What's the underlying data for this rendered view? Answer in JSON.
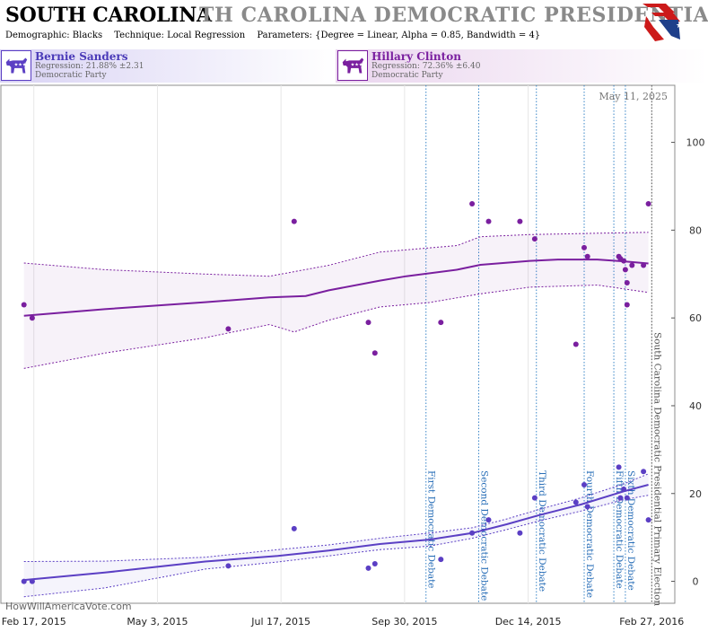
{
  "header": {
    "title": "SOUTH CAROLINA",
    "title_ghost": "TH CAROLINA DEMOCRATIC PRESIDENTIAL PRIMARY",
    "demographic": "Demographic: Blacks",
    "technique": "Technique: Local Regression",
    "parameters": "Parameters: {Degree = Linear, Alpha = 0.85, Bandwidth = 4}"
  },
  "candidates": [
    {
      "name": "Bernie Sanders",
      "regression": "Regression: 21.88% ±2.31",
      "party": "Democratic Party",
      "icon": "democrat-donkey-icon",
      "color": "#5b3fc4"
    },
    {
      "name": "Hillary Clinton",
      "regression": "Regression: 72.36% ±6.40",
      "party": "Democratic Party",
      "icon": "democrat-donkey-icon",
      "color": "#7a1f9f"
    }
  ],
  "chart_data": {
    "type": "scatter",
    "title": "",
    "xlabel": "",
    "ylabel": "",
    "ylim": [
      -5,
      113
    ],
    "yticks": [
      0,
      20,
      40,
      60,
      80,
      100
    ],
    "xlim": [
      "2015-01-28",
      "2016-03-12"
    ],
    "xticks": [
      {
        "date": "2015-02-17",
        "label": "Feb 17, 2015"
      },
      {
        "date": "2015-05-03",
        "label": "May 3, 2015"
      },
      {
        "date": "2015-07-17",
        "label": "Jul 17, 2015"
      },
      {
        "date": "2015-09-30",
        "label": "Sep 30, 2015"
      },
      {
        "date": "2015-12-14",
        "label": "Dec 14, 2015"
      },
      {
        "date": "2016-02-27",
        "label": "Feb 27, 2016"
      }
    ],
    "grid": "vertical",
    "current_date": "May 11, 2025",
    "watermark": "HowWillAmericaVote.com",
    "events": [
      {
        "date": "2015-10-13",
        "label": "First Democratic Debate"
      },
      {
        "date": "2015-11-14",
        "label": "Second Democratic Debate"
      },
      {
        "date": "2015-12-19",
        "label": "Third Democratic Debate"
      },
      {
        "date": "2016-01-17",
        "label": "Fourth Democratic Debate"
      },
      {
        "date": "2016-02-04",
        "label": "Fifth Democratic Debate"
      },
      {
        "date": "2016-02-11",
        "label": "Sixth Democratic Debate"
      },
      {
        "date": "2016-02-27",
        "label": "South Carolina Democratic Presidential Primary Election"
      }
    ],
    "series": [
      {
        "name": "Hillary Clinton",
        "color": "#7a1f9f",
        "points": [
          [
            "2015-02-11",
            63
          ],
          [
            "2015-02-16",
            60
          ],
          [
            "2015-06-15",
            57.5
          ],
          [
            "2015-07-25",
            82
          ],
          [
            "2015-09-08",
            59
          ],
          [
            "2015-09-12",
            52
          ],
          [
            "2015-10-22",
            59
          ],
          [
            "2015-11-10",
            86
          ],
          [
            "2015-11-20",
            82
          ],
          [
            "2015-12-09",
            82
          ],
          [
            "2015-12-18",
            78
          ],
          [
            "2016-01-12",
            54
          ],
          [
            "2016-01-17",
            76
          ],
          [
            "2016-01-19",
            74
          ],
          [
            "2016-02-07",
            74
          ],
          [
            "2016-02-08",
            73.5
          ],
          [
            "2016-02-10",
            73
          ],
          [
            "2016-02-11",
            71
          ],
          [
            "2016-02-12",
            68
          ],
          [
            "2016-02-12",
            63
          ],
          [
            "2016-02-15",
            72
          ],
          [
            "2016-02-22",
            72
          ],
          [
            "2016-02-25",
            86
          ]
        ],
        "trend": [
          [
            "2015-02-11",
            60.5
          ],
          [
            "2015-04-01",
            62
          ],
          [
            "2015-06-01",
            63.6
          ],
          [
            "2015-07-10",
            64.7
          ],
          [
            "2015-08-01",
            65
          ],
          [
            "2015-08-15",
            66.3
          ],
          [
            "2015-09-15",
            68.5
          ],
          [
            "2015-10-01",
            69.5
          ],
          [
            "2015-11-01",
            71
          ],
          [
            "2015-11-15",
            72.1
          ],
          [
            "2015-12-15",
            73
          ],
          [
            "2016-01-01",
            73.3
          ],
          [
            "2016-01-25",
            73.3
          ],
          [
            "2016-02-10",
            72.9
          ],
          [
            "2016-02-25",
            72.4
          ]
        ],
        "band_upper": [
          [
            "2015-02-11",
            72.5
          ],
          [
            "2015-04-01",
            71
          ],
          [
            "2015-06-01",
            70
          ],
          [
            "2015-07-10",
            69.5
          ],
          [
            "2015-08-15",
            72
          ],
          [
            "2015-09-15",
            75
          ],
          [
            "2015-11-01",
            76.5
          ],
          [
            "2015-11-15",
            78.5
          ],
          [
            "2015-12-15",
            79
          ],
          [
            "2016-01-25",
            79.3
          ],
          [
            "2016-02-25",
            79.5
          ]
        ],
        "band_lower": [
          [
            "2015-02-11",
            48.5
          ],
          [
            "2015-04-01",
            52
          ],
          [
            "2015-06-01",
            55.5
          ],
          [
            "2015-07-10",
            58.5
          ],
          [
            "2015-07-25",
            56.8
          ],
          [
            "2015-08-15",
            59.5
          ],
          [
            "2015-09-15",
            62.5
          ],
          [
            "2015-10-15",
            63.5
          ],
          [
            "2015-11-15",
            65.5
          ],
          [
            "2015-12-15",
            67
          ],
          [
            "2016-01-25",
            67.5
          ],
          [
            "2016-02-25",
            65.8
          ]
        ]
      },
      {
        "name": "Bernie Sanders",
        "color": "#5b3fc4",
        "points": [
          [
            "2015-02-11",
            0
          ],
          [
            "2015-02-16",
            0
          ],
          [
            "2015-06-15",
            3.5
          ],
          [
            "2015-07-25",
            12
          ],
          [
            "2015-09-08",
            3
          ],
          [
            "2015-09-12",
            4
          ],
          [
            "2015-10-22",
            5
          ],
          [
            "2015-11-10",
            11
          ],
          [
            "2015-11-20",
            14
          ],
          [
            "2015-12-09",
            11
          ],
          [
            "2015-12-18",
            19
          ],
          [
            "2016-01-12",
            18
          ],
          [
            "2016-01-17",
            22
          ],
          [
            "2016-01-19",
            17
          ],
          [
            "2016-02-07",
            26
          ],
          [
            "2016-02-08",
            19
          ],
          [
            "2016-02-10",
            21
          ],
          [
            "2016-02-12",
            19
          ],
          [
            "2016-02-22",
            25
          ],
          [
            "2016-02-25",
            14
          ]
        ],
        "trend": [
          [
            "2015-02-11",
            0.3
          ],
          [
            "2015-04-01",
            2
          ],
          [
            "2015-06-01",
            4.5
          ],
          [
            "2015-07-15",
            5.8
          ],
          [
            "2015-08-15",
            7
          ],
          [
            "2015-09-15",
            8.5
          ],
          [
            "2015-10-15",
            9.5
          ],
          [
            "2015-11-10",
            11
          ],
          [
            "2015-12-01",
            13
          ],
          [
            "2015-12-20",
            15
          ],
          [
            "2016-01-15",
            17.5
          ],
          [
            "2016-02-10",
            20.5
          ],
          [
            "2016-02-25",
            22
          ]
        ],
        "band_upper": [
          [
            "2015-02-11",
            4.5
          ],
          [
            "2015-04-01",
            4.6
          ],
          [
            "2015-06-01",
            5.5
          ],
          [
            "2015-07-15",
            7.2
          ],
          [
            "2015-08-15",
            8.3
          ],
          [
            "2015-09-15",
            9.8
          ],
          [
            "2015-10-15",
            11
          ],
          [
            "2015-11-10",
            12.2
          ],
          [
            "2015-12-01",
            14.2
          ],
          [
            "2015-12-20",
            16.3
          ],
          [
            "2016-01-15",
            19
          ],
          [
            "2016-02-10",
            22.2
          ],
          [
            "2016-02-25",
            24.5
          ]
        ],
        "band_lower": [
          [
            "2015-02-11",
            -3.5
          ],
          [
            "2015-04-01",
            -1.5
          ],
          [
            "2015-06-01",
            2.8
          ],
          [
            "2015-07-15",
            4.4
          ],
          [
            "2015-08-15",
            5.8
          ],
          [
            "2015-09-15",
            7.2
          ],
          [
            "2015-10-15",
            8
          ],
          [
            "2015-11-10",
            9.8
          ],
          [
            "2015-12-01",
            11.8
          ],
          [
            "2015-12-20",
            13.7
          ],
          [
            "2016-01-15",
            16
          ],
          [
            "2016-02-10",
            18.6
          ],
          [
            "2016-02-25",
            19.6
          ]
        ]
      }
    ]
  }
}
